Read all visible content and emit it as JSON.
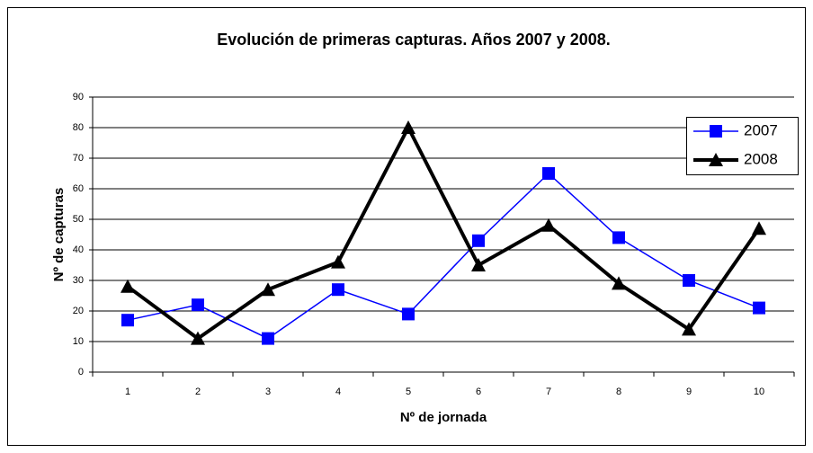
{
  "chart_data": {
    "type": "line",
    "title": "Evolución de primeras capturas. Años 2007 y 2008.",
    "x_label": "Nº de jornada",
    "y_label": "Nº de capturas",
    "categories": [
      "1",
      "2",
      "3",
      "4",
      "5",
      "6",
      "7",
      "8",
      "9",
      "10"
    ],
    "series": [
      {
        "name": "2007",
        "color": "#0000ff",
        "marker": "square",
        "values": [
          17,
          22,
          11,
          27,
          19,
          43,
          65,
          44,
          30,
          21
        ]
      },
      {
        "name": "2008",
        "color": "#000000",
        "marker": "triangle",
        "values": [
          28,
          11,
          27,
          36,
          80,
          35,
          48,
          29,
          14,
          47
        ]
      }
    ],
    "ylim": [
      0,
      90
    ],
    "yticks": [
      0,
      10,
      20,
      30,
      40,
      50,
      60,
      70,
      80,
      90
    ],
    "grid": true,
    "legend": "right"
  }
}
